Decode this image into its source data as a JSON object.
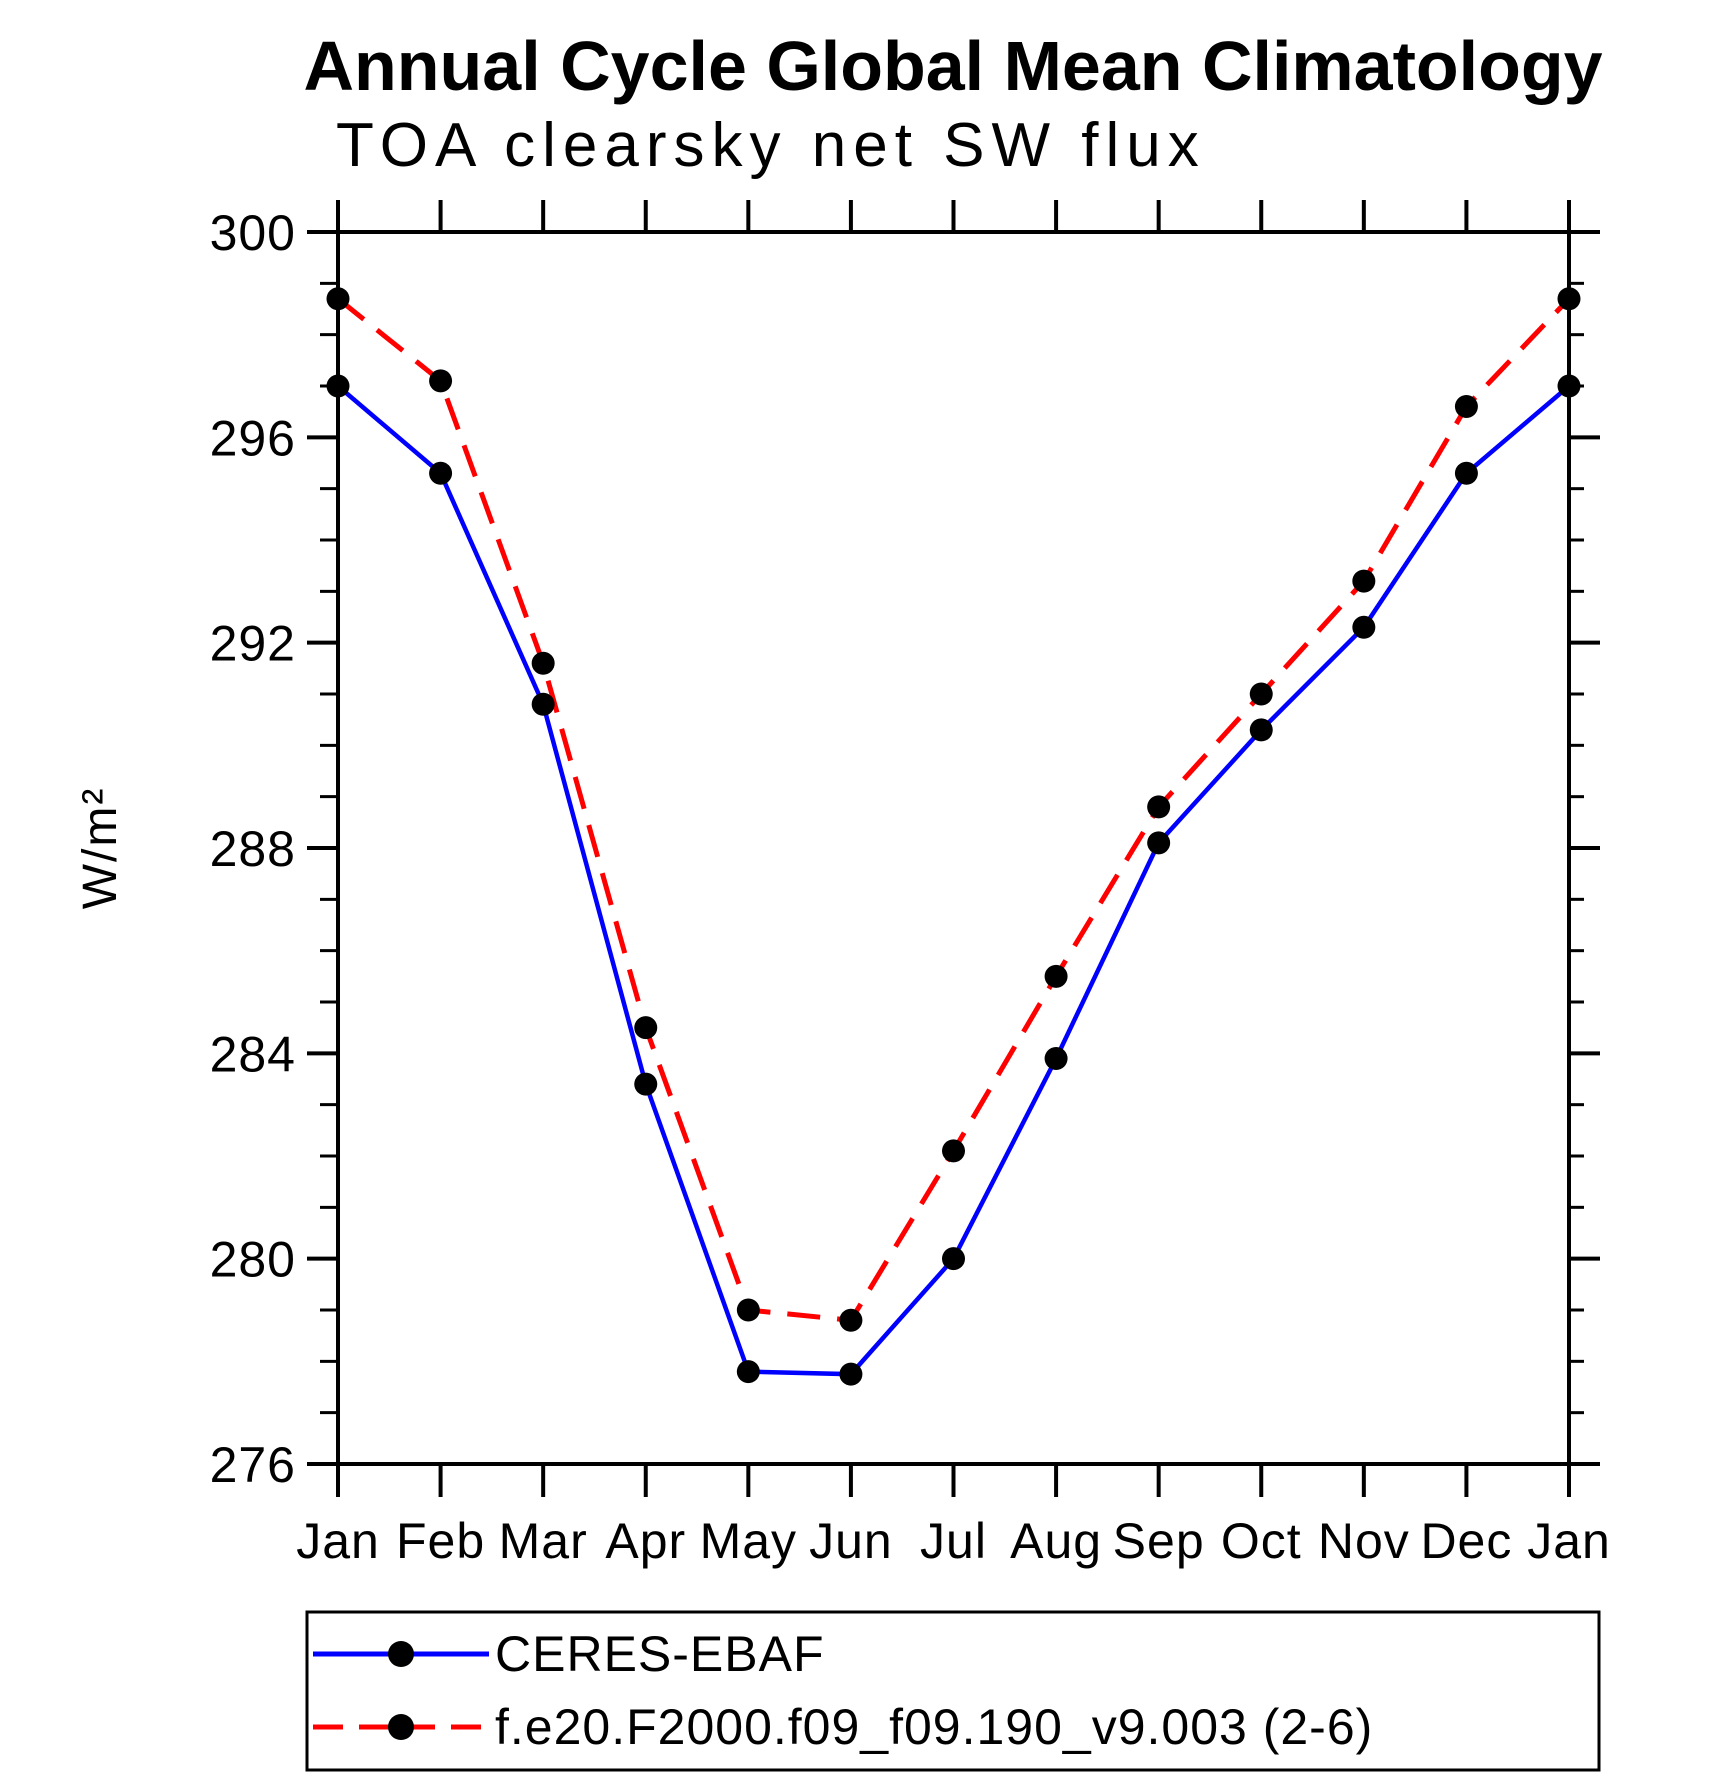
{
  "chart_data": {
    "type": "line",
    "title": "Annual Cycle Global Mean Climatology",
    "subtitle": "TOA clearsky net SW flux",
    "ylabel": "W/m²",
    "categories": [
      "Jan",
      "Feb",
      "Mar",
      "Apr",
      "May",
      "Jun",
      "Jul",
      "Aug",
      "Sep",
      "Oct",
      "Nov",
      "Dec",
      "Jan"
    ],
    "ylim": [
      276,
      300
    ],
    "y_major_ticks": [
      276,
      280,
      284,
      288,
      292,
      296,
      300
    ],
    "y_minor_step": 1,
    "grid": false,
    "legend_position": "bottom",
    "frame_color": "#000000",
    "marker_color": "#000000",
    "series": [
      {
        "name": "CERES-EBAF",
        "color": "#0000ff",
        "style": "solid",
        "marker": "circle",
        "values": [
          297.0,
          295.3,
          290.8,
          283.4,
          277.8,
          277.75,
          280.0,
          283.9,
          288.1,
          290.3,
          292.3,
          295.3,
          297.0
        ]
      },
      {
        "name": "f.e20.F2000.f09_f09.190_v9.003 (2-6)",
        "color": "#ff0000",
        "style": "dashed",
        "marker": "circle",
        "values": [
          298.7,
          297.1,
          291.6,
          284.5,
          279.0,
          278.8,
          282.1,
          285.5,
          288.8,
          291.0,
          293.2,
          296.6,
          298.7
        ]
      }
    ]
  }
}
